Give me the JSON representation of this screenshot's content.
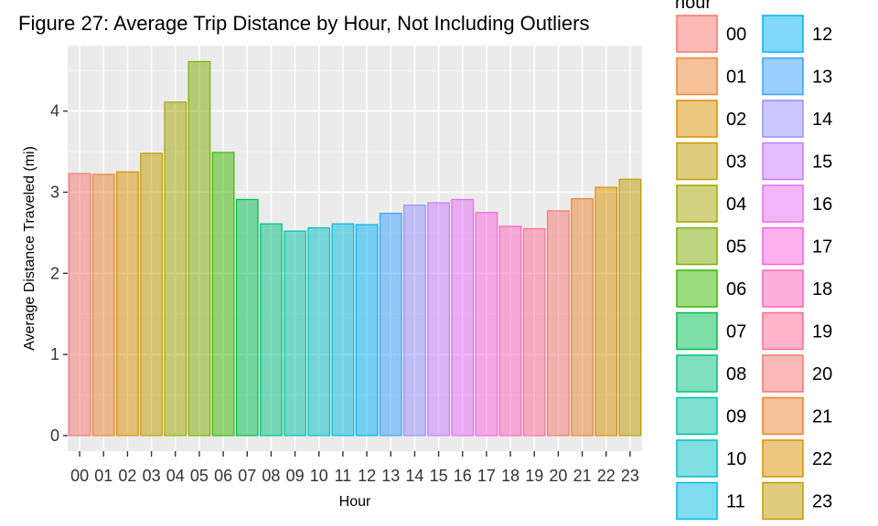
{
  "chart_data": {
    "type": "bar",
    "title": "Figure 27: Average Trip Distance by Hour, Not Including Outliers",
    "xlabel": "Hour",
    "ylabel": "Average Distance Traveled (mi)",
    "legend_title": "hour",
    "legend_placement": "right",
    "grid": true,
    "ylim": [
      0,
      4.75
    ],
    "yticks": [
      0,
      1,
      2,
      3,
      4
    ],
    "categories": [
      "00",
      "01",
      "02",
      "03",
      "04",
      "05",
      "06",
      "07",
      "08",
      "09",
      "10",
      "11",
      "12",
      "13",
      "14",
      "15",
      "16",
      "17",
      "18",
      "19",
      "20",
      "21",
      "22",
      "23"
    ],
    "values": [
      3.23,
      3.22,
      3.25,
      3.48,
      4.11,
      4.61,
      3.49,
      2.91,
      2.61,
      2.52,
      2.56,
      2.61,
      2.6,
      2.74,
      2.84,
      2.87,
      2.91,
      2.75,
      2.58,
      2.55,
      2.77,
      2.92,
      3.06,
      3.16
    ],
    "colors": [
      "#F8766D",
      "#EA8331",
      "#D89000",
      "#C09B00",
      "#A3A500",
      "#7CAE00",
      "#39B600",
      "#00BB4E",
      "#00BF7D",
      "#00C1A3",
      "#00BFC4",
      "#00BAE0",
      "#00B0F6",
      "#35A2FF",
      "#9590FF",
      "#C77CFF",
      "#E76BF3",
      "#FA62DB",
      "#FF62BC",
      "#FF6A98",
      "#F8766D",
      "#EA8331",
      "#D89000",
      "#C09B00"
    ]
  }
}
